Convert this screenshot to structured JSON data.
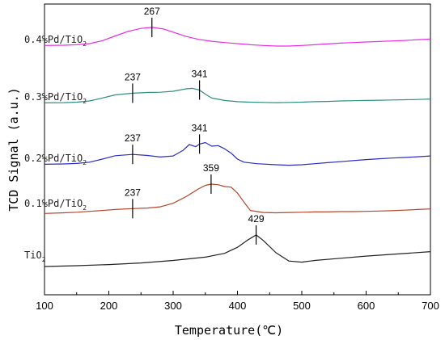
{
  "chart_data": {
    "type": "line",
    "xlabel": "Temperature(℃)",
    "ylabel": "TCD Signal (a.u.)",
    "xlim": [
      100,
      700
    ],
    "xticks": [
      100,
      200,
      300,
      400,
      500,
      600,
      700
    ],
    "grid": false,
    "series": [
      {
        "name": "0.4%Pd/TiO2",
        "label_main": "0.4%Pd/TiO",
        "label_sub": "2",
        "color": "#e62ee6",
        "offset": 4,
        "x": [
          100,
          130,
          150,
          170,
          190,
          210,
          230,
          250,
          267,
          285,
          300,
          320,
          340,
          360,
          380,
          400,
          420,
          440,
          460,
          480,
          500,
          520,
          540,
          560,
          580,
          600,
          620,
          640,
          660,
          680,
          700
        ],
        "y": [
          0.02,
          0.03,
          0.05,
          0.09,
          0.2,
          0.38,
          0.55,
          0.66,
          0.7,
          0.64,
          0.52,
          0.36,
          0.25,
          0.18,
          0.13,
          0.09,
          0.05,
          0.02,
          0.0,
          0.0,
          0.02,
          0.05,
          0.08,
          0.11,
          0.13,
          0.15,
          0.17,
          0.19,
          0.21,
          0.24,
          0.26
        ],
        "peaks": [
          {
            "x": 267,
            "label": "267"
          }
        ]
      },
      {
        "name": "0.3%Pd/TiO2",
        "label_main": "0.3%Pd/TiO",
        "label_sub": "2",
        "color": "#2e8f80",
        "offset": 3,
        "x": [
          100,
          130,
          150,
          170,
          190,
          210,
          237,
          260,
          280,
          300,
          320,
          330,
          341,
          350,
          360,
          380,
          400,
          420,
          440,
          460,
          480,
          500,
          520,
          540,
          560,
          580,
          600,
          620,
          640,
          660,
          680,
          700
        ],
        "y": [
          0.02,
          0.03,
          0.05,
          0.1,
          0.22,
          0.35,
          0.42,
          0.45,
          0.46,
          0.5,
          0.6,
          0.62,
          0.55,
          0.38,
          0.22,
          0.12,
          0.07,
          0.05,
          0.04,
          0.03,
          0.04,
          0.05,
          0.07,
          0.08,
          0.1,
          0.11,
          0.12,
          0.13,
          0.14,
          0.15,
          0.16,
          0.18
        ],
        "peaks": [
          {
            "x": 237,
            "label": "237"
          },
          {
            "x": 341,
            "label": "341"
          }
        ]
      },
      {
        "name": "0.2%Pd/TiO2",
        "label_main": "0.2%Pd/TiO",
        "label_sub": "2",
        "color": "#2b2bc8",
        "offset": 2,
        "x": [
          100,
          130,
          150,
          170,
          190,
          210,
          237,
          260,
          280,
          300,
          315,
          325,
          335,
          341,
          350,
          360,
          370,
          380,
          390,
          400,
          410,
          430,
          460,
          480,
          500,
          520,
          540,
          560,
          580,
          600,
          620,
          640,
          660,
          680,
          700
        ],
        "y": [
          0.02,
          0.03,
          0.05,
          0.1,
          0.22,
          0.35,
          0.4,
          0.36,
          0.3,
          0.34,
          0.55,
          0.78,
          0.7,
          0.8,
          0.86,
          0.72,
          0.74,
          0.62,
          0.45,
          0.22,
          0.1,
          0.04,
          0.0,
          -0.02,
          0.0,
          0.04,
          0.08,
          0.12,
          0.16,
          0.2,
          0.23,
          0.26,
          0.28,
          0.31,
          0.34
        ],
        "peaks": [
          {
            "x": 237,
            "label": "237"
          },
          {
            "x": 341,
            "label": "341"
          }
        ]
      },
      {
        "name": "0.1%Pd/TiO2",
        "label_main": "0.1%Pd/TiO",
        "label_sub": "2",
        "color": "#b5452a",
        "offset": 1,
        "x": [
          100,
          130,
          150,
          170,
          190,
          210,
          237,
          260,
          280,
          300,
          320,
          340,
          350,
          359,
          370,
          380,
          390,
          400,
          410,
          420,
          440,
          460,
          480,
          500,
          520,
          540,
          560,
          580,
          600,
          620,
          640,
          660,
          680,
          700
        ],
        "y": [
          0.02,
          0.04,
          0.06,
          0.09,
          0.12,
          0.15,
          0.18,
          0.2,
          0.24,
          0.36,
          0.58,
          0.85,
          0.96,
          1.0,
          0.98,
          0.92,
          0.9,
          0.7,
          0.4,
          0.12,
          0.05,
          0.04,
          0.05,
          0.06,
          0.07,
          0.07,
          0.08,
          0.08,
          0.09,
          0.1,
          0.11,
          0.13,
          0.15,
          0.17
        ],
        "peaks": [
          {
            "x": 237,
            "label": "237"
          },
          {
            "x": 359,
            "label": "359"
          }
        ]
      },
      {
        "name": "TiO2",
        "label_main": "TiO",
        "label_sub": "2",
        "color": "#222222",
        "offset": 0,
        "x": [
          100,
          150,
          200,
          250,
          300,
          350,
          380,
          400,
          415,
          429,
          440,
          460,
          480,
          500,
          520,
          560,
          600,
          650,
          700
        ],
        "y": [
          0.0,
          0.03,
          0.07,
          0.13,
          0.22,
          0.34,
          0.48,
          0.7,
          0.95,
          1.15,
          0.95,
          0.5,
          0.2,
          0.16,
          0.22,
          0.3,
          0.38,
          0.46,
          0.54
        ],
        "peaks": [
          {
            "x": 429,
            "label": "429"
          }
        ]
      }
    ]
  }
}
